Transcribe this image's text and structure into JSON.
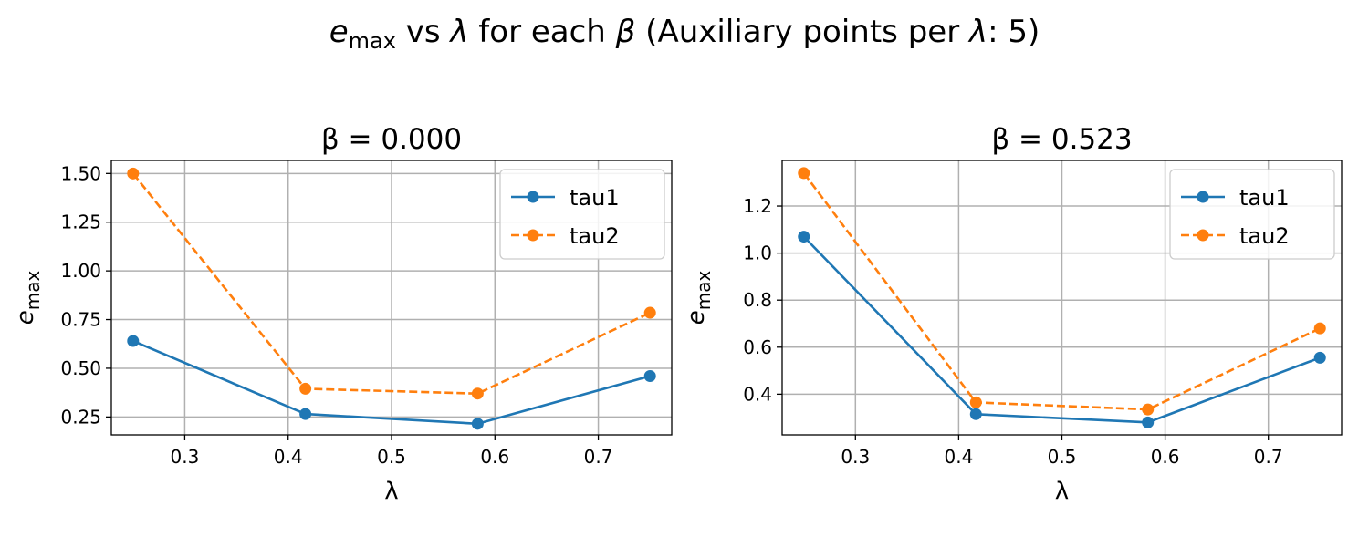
{
  "figure": {
    "suptitle": {
      "e": "e",
      "e_sub": "max",
      "middle": " vs ",
      "lambda": "λ",
      "for_each": " for each ",
      "beta": "β",
      "paren_start": " (Auxiliary points per ",
      "paren_end": ": 5)"
    }
  },
  "chart_data": [
    {
      "type": "line",
      "title": "β = 0.000",
      "xlabel": "λ",
      "ylabel": "e",
      "ylabel_sub": "max",
      "xlim": [
        0.229,
        0.771
      ],
      "ylim": [
        0.158,
        1.567
      ],
      "xticks": [
        0.3,
        0.4,
        0.5,
        0.6,
        0.7
      ],
      "xtick_labels": [
        "0.3",
        "0.4",
        "0.5",
        "0.6",
        "0.7"
      ],
      "yticks": [
        0.25,
        0.5,
        0.75,
        1.0,
        1.25,
        1.5
      ],
      "ytick_labels": [
        "0.25",
        "0.50",
        "0.75",
        "1.00",
        "1.25",
        "1.50"
      ],
      "grid": true,
      "legend": "upper right",
      "x": [
        0.25,
        0.4167,
        0.5833,
        0.75
      ],
      "series": [
        {
          "name": "tau1",
          "values": [
            0.64,
            0.265,
            0.215,
            0.46
          ],
          "color": "#1f77b4",
          "dashed": false
        },
        {
          "name": "tau2",
          "values": [
            1.5,
            0.395,
            0.37,
            0.785
          ],
          "color": "#ff7f0e",
          "dashed": true
        }
      ]
    },
    {
      "type": "line",
      "title": "β = 0.523",
      "xlabel": "λ",
      "ylabel": "e",
      "ylabel_sub": "max",
      "xlim": [
        0.229,
        0.771
      ],
      "ylim": [
        0.227,
        1.394
      ],
      "xticks": [
        0.3,
        0.4,
        0.5,
        0.6,
        0.7
      ],
      "xtick_labels": [
        "0.3",
        "0.4",
        "0.5",
        "0.6",
        "0.7"
      ],
      "yticks": [
        0.4,
        0.6,
        0.8,
        1.0,
        1.2
      ],
      "ytick_labels": [
        "0.4",
        "0.6",
        "0.8",
        "1.0",
        "1.2"
      ],
      "grid": true,
      "legend": "upper right",
      "x": [
        0.25,
        0.4167,
        0.5833,
        0.75
      ],
      "series": [
        {
          "name": "tau1",
          "values": [
            1.07,
            0.315,
            0.28,
            0.555
          ],
          "color": "#1f77b4",
          "dashed": false
        },
        {
          "name": "tau2",
          "values": [
            1.34,
            0.365,
            0.335,
            0.68
          ],
          "color": "#ff7f0e",
          "dashed": true
        }
      ]
    }
  ]
}
